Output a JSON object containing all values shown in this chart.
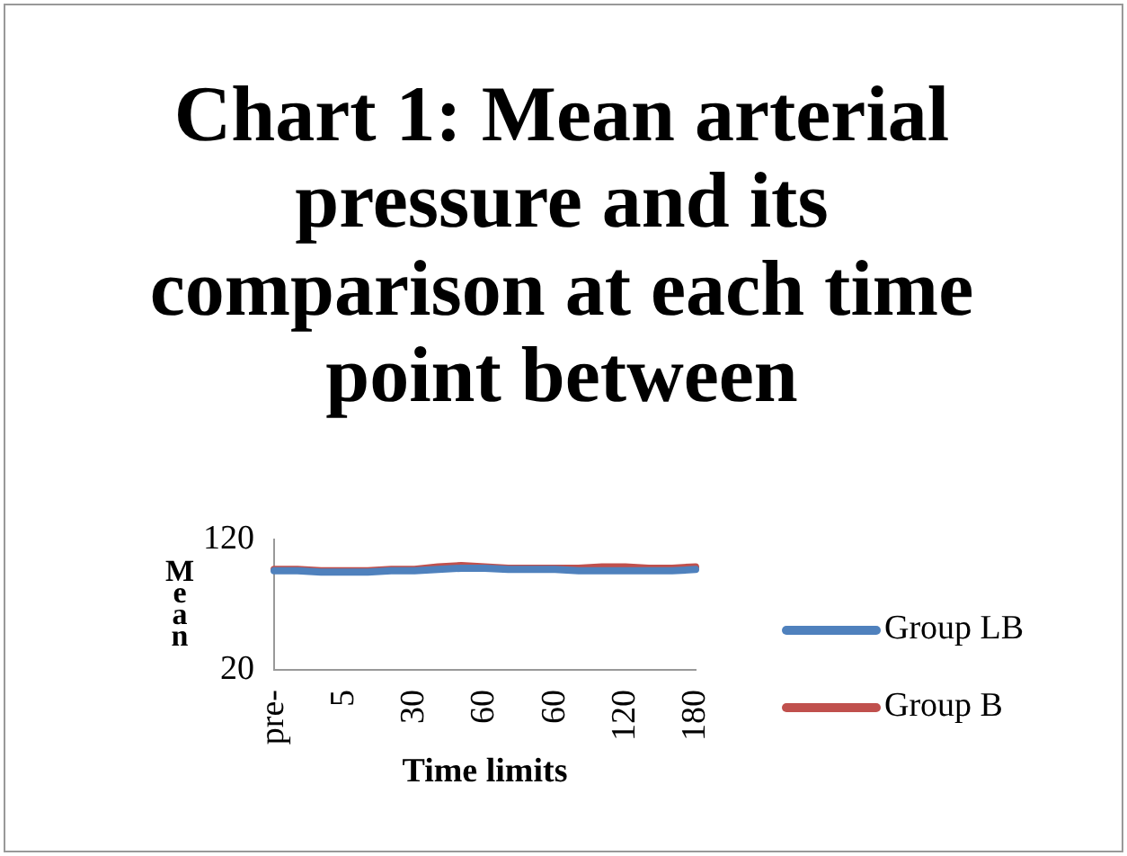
{
  "chart_data": {
    "type": "line",
    "title": "Chart 1: Mean arterial pressure and its comparison at each time point between",
    "xlabel": "Time limits",
    "ylabel": "Mean",
    "categories": [
      "pre-",
      null,
      null,
      "5",
      null,
      null,
      "30",
      null,
      null,
      "60",
      null,
      null,
      "60",
      null,
      null,
      "120",
      null,
      null,
      "180"
    ],
    "series": [
      {
        "name": "Group LB",
        "color": "#4f81bd",
        "values": [
          96,
          96,
          95,
          95,
          95,
          96,
          96,
          97,
          98,
          98,
          97,
          97,
          97,
          96,
          96,
          96,
          96,
          96,
          97
        ]
      },
      {
        "name": "Group B",
        "color": "#c0504d",
        "values": [
          97,
          97,
          96,
          96,
          96,
          97,
          97,
          99,
          100,
          99,
          98,
          98,
          98,
          98,
          99,
          99,
          98,
          98,
          99
        ]
      }
    ],
    "ylim": [
      20,
      120
    ],
    "yticks": [
      20,
      120
    ],
    "grid": false,
    "legend": "right",
    "line_style": "solid",
    "marker": "none"
  }
}
